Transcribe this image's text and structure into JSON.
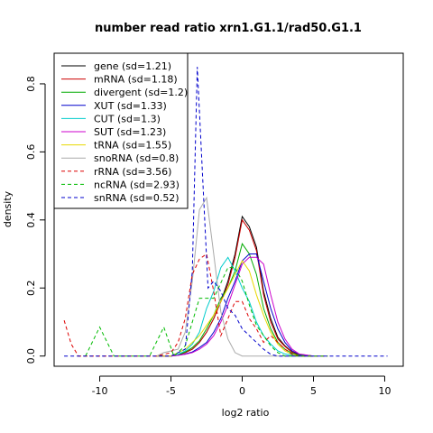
{
  "chart_data": {
    "type": "line",
    "title": "number read ratio xrn1.G1.1/rad50.G1.1",
    "xlabel": "log2 ratio",
    "ylabel": "density",
    "xlim": [
      -13.2,
      11.3
    ],
    "ylim": [
      -0.03,
      0.89
    ],
    "xticks": [
      -10,
      -5,
      0,
      5,
      10
    ],
    "yticks": [
      0.0,
      0.2,
      0.4,
      0.6,
      0.8
    ],
    "grid": false,
    "legend_position": "top-left",
    "series": [
      {
        "name": "gene (sd=1.21)",
        "color": "#000000",
        "dash": "solid",
        "points": [
          [
            -6,
            0
          ],
          [
            -5,
            0
          ],
          [
            -4.5,
            0.004
          ],
          [
            -4,
            0.01
          ],
          [
            -3.5,
            0.02
          ],
          [
            -3,
            0.04
          ],
          [
            -2.5,
            0.07
          ],
          [
            -2,
            0.11
          ],
          [
            -1.5,
            0.16
          ],
          [
            -1,
            0.22
          ],
          [
            -0.5,
            0.3
          ],
          [
            0,
            0.41
          ],
          [
            0.5,
            0.38
          ],
          [
            1,
            0.32
          ],
          [
            1.5,
            0.19
          ],
          [
            2,
            0.11
          ],
          [
            2.5,
            0.055
          ],
          [
            3,
            0.03
          ],
          [
            3.5,
            0.012
          ],
          [
            4,
            0.004
          ],
          [
            5,
            0
          ]
        ]
      },
      {
        "name": "mRNA (sd=1.18)",
        "color": "#cc0000",
        "dash": "solid",
        "points": [
          [
            -6,
            0
          ],
          [
            -5,
            0
          ],
          [
            -4.5,
            0.004
          ],
          [
            -4,
            0.01
          ],
          [
            -3.5,
            0.02
          ],
          [
            -3,
            0.04
          ],
          [
            -2.5,
            0.07
          ],
          [
            -2,
            0.11
          ],
          [
            -1.5,
            0.16
          ],
          [
            -1,
            0.21
          ],
          [
            -0.5,
            0.29
          ],
          [
            0,
            0.4
          ],
          [
            0.5,
            0.37
          ],
          [
            1,
            0.31
          ],
          [
            1.5,
            0.18
          ],
          [
            2,
            0.1
          ],
          [
            2.5,
            0.05
          ],
          [
            3,
            0.028
          ],
          [
            3.5,
            0.011
          ],
          [
            4,
            0.004
          ],
          [
            5,
            0
          ]
        ]
      },
      {
        "name": "divergent (sd=1.2)",
        "color": "#00aa00",
        "dash": "solid",
        "points": [
          [
            -6,
            0
          ],
          [
            -5,
            0
          ],
          [
            -4.5,
            0.004
          ],
          [
            -4,
            0.012
          ],
          [
            -3.5,
            0.025
          ],
          [
            -3,
            0.045
          ],
          [
            -2.5,
            0.08
          ],
          [
            -2,
            0.12
          ],
          [
            -1.5,
            0.17
          ],
          [
            -1,
            0.2
          ],
          [
            -0.5,
            0.25
          ],
          [
            0,
            0.33
          ],
          [
            0.5,
            0.3
          ],
          [
            1,
            0.24
          ],
          [
            1.5,
            0.14
          ],
          [
            2,
            0.08
          ],
          [
            2.5,
            0.04
          ],
          [
            3,
            0.02
          ],
          [
            3.5,
            0.008
          ],
          [
            4,
            0.003
          ],
          [
            5,
            0
          ]
        ]
      },
      {
        "name": "XUT (sd=1.33)",
        "color": "#0000cc",
        "dash": "solid",
        "points": [
          [
            -6,
            0
          ],
          [
            -5,
            0
          ],
          [
            -4.5,
            0.002
          ],
          [
            -4,
            0.006
          ],
          [
            -3.5,
            0.012
          ],
          [
            -3,
            0.025
          ],
          [
            -2.5,
            0.04
          ],
          [
            -2,
            0.07
          ],
          [
            -1.5,
            0.11
          ],
          [
            -1,
            0.17
          ],
          [
            -0.5,
            0.22
          ],
          [
            0,
            0.28
          ],
          [
            0.5,
            0.3
          ],
          [
            1,
            0.3
          ],
          [
            1.5,
            0.22
          ],
          [
            2,
            0.14
          ],
          [
            2.5,
            0.08
          ],
          [
            3,
            0.04
          ],
          [
            3.5,
            0.015
          ],
          [
            4,
            0.005
          ],
          [
            5,
            0
          ]
        ]
      },
      {
        "name": "CUT (sd=1.3)",
        "color": "#00cccc",
        "dash": "solid",
        "points": [
          [
            -6,
            0
          ],
          [
            -5,
            0
          ],
          [
            -4.5,
            0.005
          ],
          [
            -4,
            0.015
          ],
          [
            -3.5,
            0.035
          ],
          [
            -3,
            0.07
          ],
          [
            -2.5,
            0.14
          ],
          [
            -2,
            0.19
          ],
          [
            -1.5,
            0.26
          ],
          [
            -1,
            0.29
          ],
          [
            -0.5,
            0.25
          ],
          [
            0,
            0.2
          ],
          [
            0.5,
            0.16
          ],
          [
            1,
            0.1
          ],
          [
            1.5,
            0.06
          ],
          [
            2,
            0.035
          ],
          [
            2.5,
            0.015
          ],
          [
            3,
            0.006
          ],
          [
            4,
            0
          ],
          [
            5,
            0
          ]
        ]
      },
      {
        "name": "SUT (sd=1.23)",
        "color": "#cc00cc",
        "dash": "solid",
        "points": [
          [
            -6,
            0
          ],
          [
            -5,
            0
          ],
          [
            -4.5,
            0.002
          ],
          [
            -4,
            0.005
          ],
          [
            -3.5,
            0.01
          ],
          [
            -3,
            0.02
          ],
          [
            -2.5,
            0.035
          ],
          [
            -2,
            0.06
          ],
          [
            -1.5,
            0.1
          ],
          [
            -1,
            0.15
          ],
          [
            -0.5,
            0.21
          ],
          [
            0,
            0.27
          ],
          [
            0.5,
            0.29
          ],
          [
            1,
            0.29
          ],
          [
            1.5,
            0.27
          ],
          [
            2,
            0.18
          ],
          [
            2.5,
            0.1
          ],
          [
            3,
            0.05
          ],
          [
            3.5,
            0.02
          ],
          [
            4,
            0.006
          ],
          [
            5,
            0
          ]
        ]
      },
      {
        "name": "tRNA (sd=1.55)",
        "color": "#e8d800",
        "dash": "solid",
        "points": [
          [
            -6,
            0
          ],
          [
            -5,
            0
          ],
          [
            -4.5,
            0.01
          ],
          [
            -4,
            0.02
          ],
          [
            -3.5,
            0.04
          ],
          [
            -3,
            0.06
          ],
          [
            -2.5,
            0.09
          ],
          [
            -2,
            0.12
          ],
          [
            -1.5,
            0.16
          ],
          [
            -1,
            0.2
          ],
          [
            -0.5,
            0.24
          ],
          [
            0,
            0.28
          ],
          [
            0.5,
            0.25
          ],
          [
            1,
            0.18
          ],
          [
            1.5,
            0.12
          ],
          [
            2,
            0.07
          ],
          [
            2.5,
            0.035
          ],
          [
            3,
            0.015
          ],
          [
            3.5,
            0.005
          ],
          [
            4,
            0
          ],
          [
            5,
            0
          ]
        ]
      },
      {
        "name": "snoRNA (sd=0.8)",
        "color": "#aaaaaa",
        "dash": "solid",
        "points": [
          [
            -6,
            0
          ],
          [
            -5.5,
            0.01
          ],
          [
            -5,
            0.015
          ],
          [
            -4.5,
            0.02
          ],
          [
            -4,
            0.07
          ],
          [
            -3.5,
            0.22
          ],
          [
            -3,
            0.43
          ],
          [
            -2.5,
            0.465
          ],
          [
            -2,
            0.3
          ],
          [
            -1.5,
            0.13
          ],
          [
            -1,
            0.05
          ],
          [
            -0.5,
            0.01
          ],
          [
            0,
            0
          ],
          [
            1,
            0
          ],
          [
            5,
            0
          ]
        ]
      },
      {
        "name": "rRNA (sd=3.56)",
        "color": "#dd0000",
        "dash": "dashed",
        "points": [
          [
            -12.5,
            0.105
          ],
          [
            -12,
            0.035
          ],
          [
            -11.5,
            0
          ],
          [
            -6,
            0
          ],
          [
            -5,
            0.01
          ],
          [
            -4.5,
            0.04
          ],
          [
            -4,
            0.11
          ],
          [
            -3.5,
            0.24
          ],
          [
            -3,
            0.285
          ],
          [
            -2.5,
            0.3
          ],
          [
            -2,
            0.19
          ],
          [
            -1.5,
            0.06
          ],
          [
            -1,
            0.11
          ],
          [
            -0.5,
            0.16
          ],
          [
            0,
            0.16
          ],
          [
            0.5,
            0.11
          ],
          [
            1,
            0.08
          ],
          [
            1.5,
            0.04
          ],
          [
            2,
            0.06
          ],
          [
            2.5,
            0.04
          ],
          [
            3,
            0.02
          ],
          [
            3.5,
            0.005
          ],
          [
            4,
            0
          ],
          [
            6,
            0
          ]
        ]
      },
      {
        "name": "ncRNA (sd=2.93)",
        "color": "#00bb00",
        "dash": "dashed",
        "points": [
          [
            -11,
            0
          ],
          [
            -10,
            0.085
          ],
          [
            -9,
            0
          ],
          [
            -6.5,
            0
          ],
          [
            -5.5,
            0.085
          ],
          [
            -4.8,
            0
          ],
          [
            -4,
            0.03
          ],
          [
            -3,
            0.17
          ],
          [
            -2,
            0.17
          ],
          [
            -1,
            0.26
          ],
          [
            -0.5,
            0.26
          ],
          [
            0,
            0.22
          ],
          [
            0.5,
            0.15
          ],
          [
            1,
            0.09
          ],
          [
            1.5,
            0.06
          ],
          [
            2,
            0.03
          ],
          [
            2.5,
            0.01
          ],
          [
            3,
            0
          ],
          [
            6,
            0
          ]
        ]
      },
      {
        "name": "snRNA (sd=0.52)",
        "color": "#0000cc",
        "dash": "dashed",
        "points": [
          [
            -12.5,
            0
          ],
          [
            -5,
            0
          ],
          [
            -4,
            0.02
          ],
          [
            -3.5,
            0.25
          ],
          [
            -3.15,
            0.85
          ],
          [
            -2.75,
            0.5
          ],
          [
            -2.4,
            0.2
          ],
          [
            -2,
            0.22
          ],
          [
            -1.5,
            0.19
          ],
          [
            -1,
            0.14
          ],
          [
            -0.5,
            0.12
          ],
          [
            0,
            0.08
          ],
          [
            0.5,
            0.06
          ],
          [
            1,
            0.04
          ],
          [
            1.5,
            0.02
          ],
          [
            2,
            0.005
          ],
          [
            2.5,
            0
          ],
          [
            10.2,
            0
          ]
        ]
      }
    ]
  }
}
